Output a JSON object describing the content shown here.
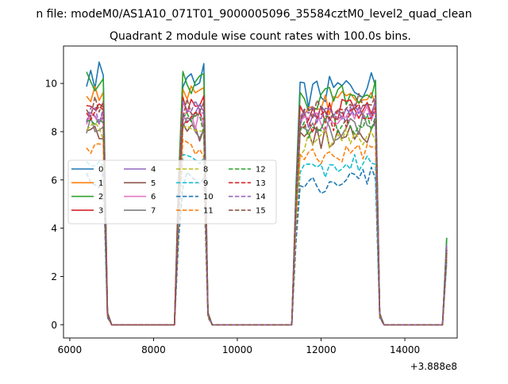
{
  "suptitle": "n file: modeM0/AS1A10_071T01_9000005096_35584cztM0_level2_quad_clean",
  "chart_data": {
    "type": "line",
    "title": "Quadrant 2 module wise count rates with 100.0s bins.",
    "xlabel": "",
    "ylabel": "",
    "x_offset_label": "+3.888e8",
    "xlim": [
      5850,
      15250
    ],
    "ylim": [
      -0.55,
      11.55
    ],
    "xticks": [
      6000,
      8000,
      10000,
      12000,
      14000
    ],
    "yticks": [
      0,
      2,
      4,
      6,
      8,
      10
    ],
    "grid": false,
    "legend": {
      "placement": "center-left",
      "ncol": 4
    },
    "series": [
      {
        "name": "0",
        "color": "#1f77b4",
        "dash": "solid",
        "level": 10.3,
        "p3": 9.5,
        "amp": 0.6
      },
      {
        "name": "1",
        "color": "#ff7f0e",
        "dash": "solid",
        "level": 9.6,
        "p3": 8.9,
        "amp": 0.5
      },
      {
        "name": "2",
        "color": "#2ca02c",
        "dash": "solid",
        "level": 10.0,
        "p3": 9.2,
        "amp": 0.5
      },
      {
        "name": "3",
        "color": "#d62728",
        "dash": "solid",
        "level": 9.2,
        "p3": 8.6,
        "amp": 0.5
      },
      {
        "name": "4",
        "color": "#9467bd",
        "dash": "solid",
        "level": 8.7,
        "p3": 8.4,
        "amp": 0.5
      },
      {
        "name": "5",
        "color": "#8c564b",
        "dash": "solid",
        "level": 8.0,
        "p3": 7.6,
        "amp": 0.5
      },
      {
        "name": "6",
        "color": "#e377c2",
        "dash": "solid",
        "level": 8.5,
        "p3": 8.2,
        "amp": 0.5
      },
      {
        "name": "7",
        "color": "#7f7f7f",
        "dash": "solid",
        "level": 8.2,
        "p3": 7.9,
        "amp": 0.5
      },
      {
        "name": "8",
        "color": "#bcbd22",
        "dash": "dashed",
        "level": 7.9,
        "p3": 7.5,
        "amp": 0.5
      },
      {
        "name": "9",
        "color": "#17becf",
        "dash": "dashed",
        "level": 6.8,
        "p3": 6.3,
        "amp": 0.4
      },
      {
        "name": "10",
        "color": "#1f77b4",
        "dash": "dashed",
        "level": 6.0,
        "p3": 5.7,
        "amp": 0.4
      },
      {
        "name": "11",
        "color": "#ff7f0e",
        "dash": "dashed",
        "level": 7.3,
        "p3": 6.8,
        "amp": 0.4
      },
      {
        "name": "12",
        "color": "#2ca02c",
        "dash": "dashed",
        "level": 8.4,
        "p3": 8.0,
        "amp": 0.5
      },
      {
        "name": "13",
        "color": "#d62728",
        "dash": "dashed",
        "level": 8.6,
        "p3": 8.3,
        "amp": 0.5
      },
      {
        "name": "14",
        "color": "#9467bd",
        "dash": "dashed",
        "level": 8.8,
        "p3": 8.5,
        "amp": 0.5
      },
      {
        "name": "15",
        "color": "#8c564b",
        "dash": "dashed",
        "level": 9.0,
        "p3": 8.7,
        "amp": 0.5
      }
    ],
    "on_intervals": [
      {
        "start": 6400,
        "end": 6800
      },
      {
        "start": 8700,
        "end": 9200
      },
      {
        "start": 11500,
        "end": 13300
      }
    ],
    "x_range": [
      6400,
      15000
    ],
    "bin_seconds": 100,
    "end_values": [
      3.6,
      3.2,
      3.6,
      3.1,
      3.3,
      3.0,
      3.1,
      3.0,
      2.9,
      2.7,
      2.6,
      2.8,
      3.0,
      3.1,
      3.2,
      3.1
    ]
  }
}
